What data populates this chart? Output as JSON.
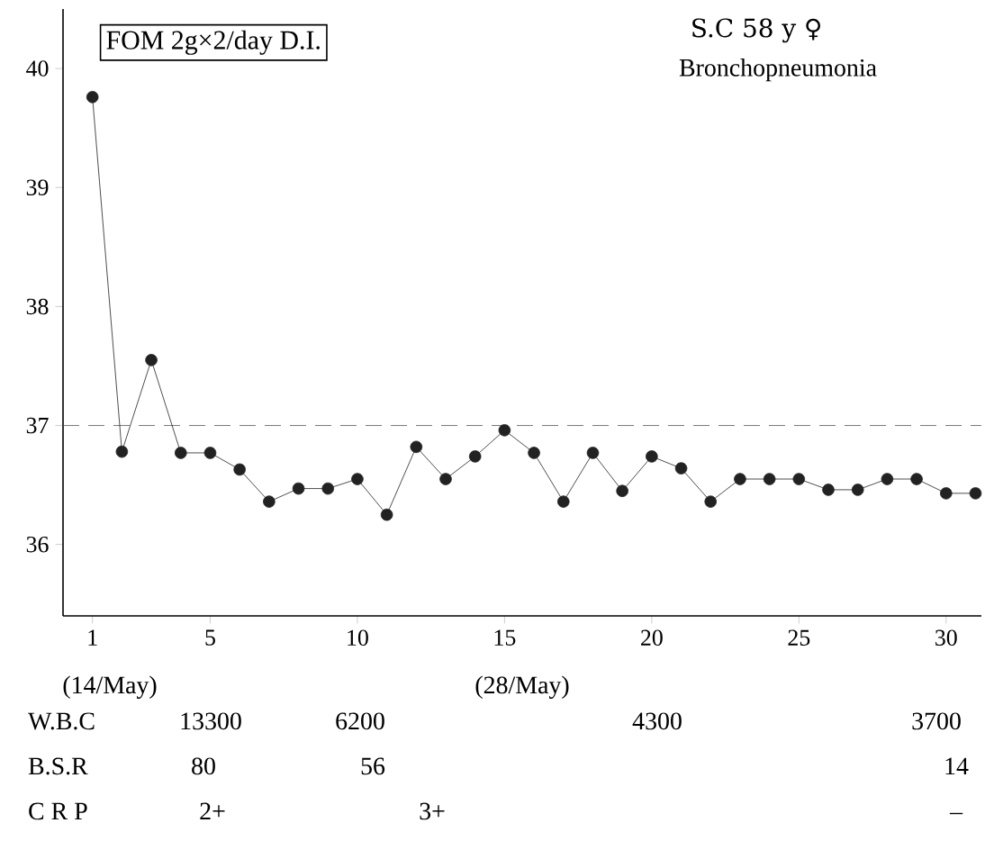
{
  "chart_data": {
    "type": "line",
    "title": "FOM  2g×2/day  D.I.",
    "subtitle": "S.C  58 y  ♀",
    "x": [
      1,
      2,
      3,
      4,
      5,
      6,
      7,
      8,
      9,
      10,
      11,
      12,
      13,
      14,
      15,
      16,
      17,
      18,
      19,
      20,
      21,
      22,
      23,
      24,
      25,
      26,
      27,
      28,
      29,
      30,
      31
    ],
    "series": [
      {
        "color": "#222222",
        "values": [
          39.76,
          36.78,
          37.55,
          36.77,
          36.77,
          36.63,
          36.36,
          36.47,
          36.47,
          36.55,
          36.25,
          36.82,
          36.55,
          36.74,
          36.96,
          36.77,
          36.36,
          36.77,
          36.45,
          36.74,
          36.64,
          36.36,
          36.55,
          36.55,
          36.55,
          36.46,
          36.46,
          36.55,
          36.55,
          36.43,
          36.43
        ]
      }
    ],
    "xlim": [
      0,
      31.2
    ],
    "ylim": [
      35.4,
      40.5
    ],
    "xticks": [
      1,
      5,
      10,
      15,
      20,
      25,
      30
    ],
    "yticks": [
      36,
      37,
      38,
      39,
      40
    ],
    "marker": "circle",
    "line_style": "solid",
    "grid": false,
    "ref_lines": [
      {
        "axis": "y",
        "value": 37,
        "line_style": "dashed",
        "color": "#555555"
      }
    ],
    "annotations": [
      "Bronchopneumonia",
      "(14/May)",
      "(28/May)",
      "W.B.C",
      "13300",
      "6200",
      "4300",
      "3700",
      "B.S.R",
      "80",
      "56",
      "14",
      "C R P",
      "2+",
      "3+",
      "–"
    ]
  }
}
